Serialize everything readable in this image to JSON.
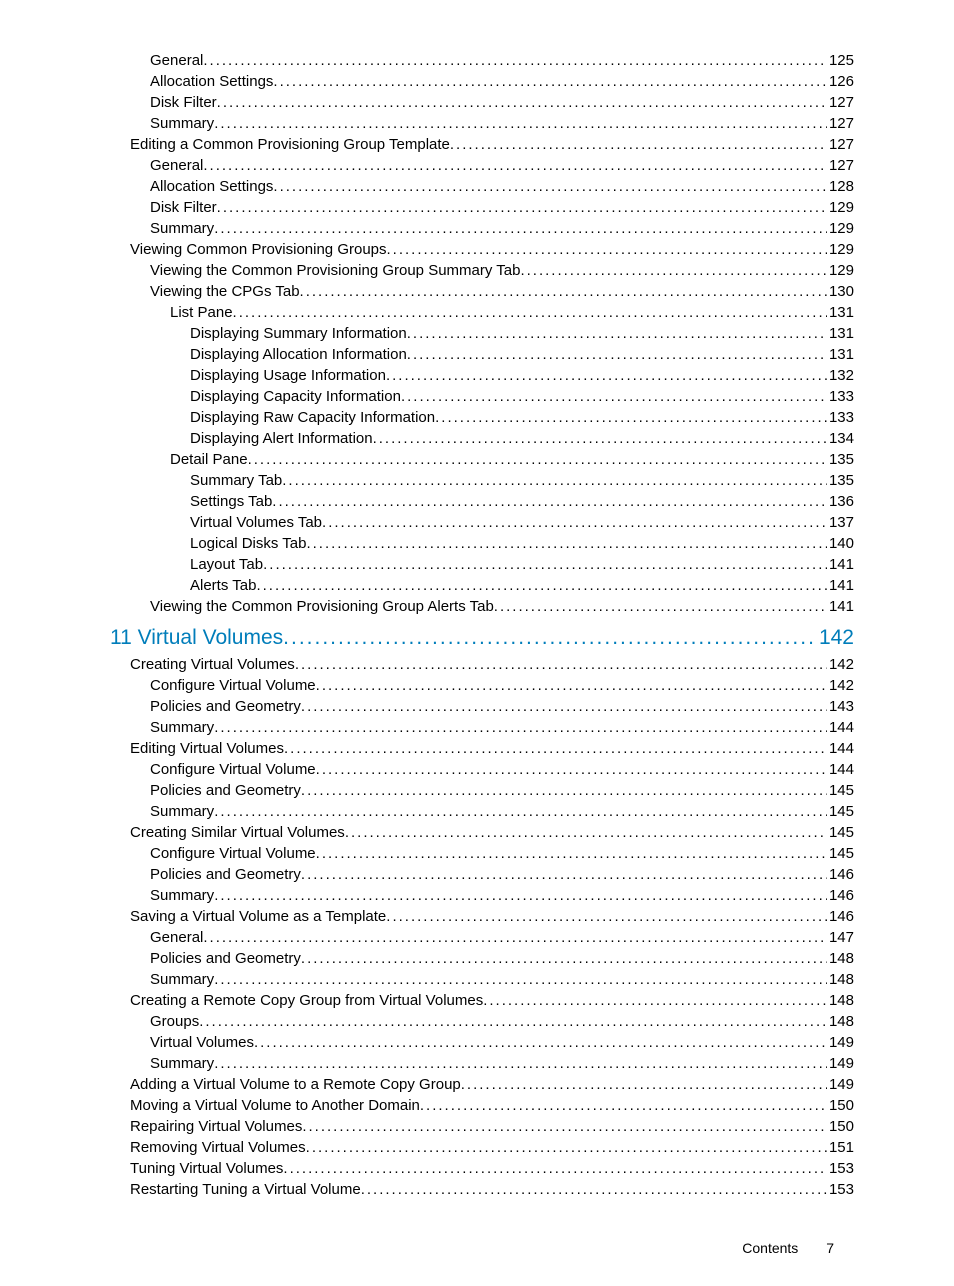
{
  "text_color": "#000000",
  "link_color": "#007dba",
  "background_color": "#ffffff",
  "body_fontsize": 15,
  "chapter_fontsize": 21,
  "font_family": "Trebuchet MS",
  "entries": [
    {
      "label": "General",
      "page": "125",
      "indent": 2
    },
    {
      "label": "Allocation Settings",
      "page": "126",
      "indent": 2
    },
    {
      "label": "Disk Filter",
      "page": "127",
      "indent": 2
    },
    {
      "label": "Summary",
      "page": "127",
      "indent": 2
    },
    {
      "label": "Editing a Common Provisioning Group Template",
      "page": "127",
      "indent": 1
    },
    {
      "label": "General",
      "page": "127",
      "indent": 2
    },
    {
      "label": "Allocation Settings",
      "page": "128",
      "indent": 2
    },
    {
      "label": "Disk Filter",
      "page": "129",
      "indent": 2
    },
    {
      "label": "Summary",
      "page": "129",
      "indent": 2
    },
    {
      "label": "Viewing Common Provisioning Groups",
      "page": "129",
      "indent": 1
    },
    {
      "label": "Viewing the Common Provisioning Group Summary Tab",
      "page": "129",
      "indent": 2
    },
    {
      "label": "Viewing the CPGs Tab",
      "page": "130",
      "indent": 2
    },
    {
      "label": "List Pane",
      "page": "131",
      "indent": 3
    },
    {
      "label": "Displaying Summary Information",
      "page": "131",
      "indent": 4
    },
    {
      "label": "Displaying Allocation Information",
      "page": "131",
      "indent": 4
    },
    {
      "label": "Displaying Usage Information",
      "page": "132",
      "indent": 4
    },
    {
      "label": "Displaying Capacity Information",
      "page": "133",
      "indent": 4
    },
    {
      "label": "Displaying Raw Capacity Information",
      "page": "133",
      "indent": 4
    },
    {
      "label": "Displaying Alert Information",
      "page": "134",
      "indent": 4
    },
    {
      "label": "Detail Pane",
      "page": "135",
      "indent": 3
    },
    {
      "label": "Summary Tab",
      "page": "135",
      "indent": 4
    },
    {
      "label": "Settings Tab",
      "page": "136",
      "indent": 4
    },
    {
      "label": "Virtual Volumes Tab",
      "page": "137",
      "indent": 4
    },
    {
      "label": "Logical Disks Tab",
      "page": "140",
      "indent": 4
    },
    {
      "label": "Layout Tab",
      "page": "141",
      "indent": 4
    },
    {
      "label": "Alerts Tab",
      "page": "141",
      "indent": 4
    },
    {
      "label": "Viewing the Common Provisioning Group Alerts Tab",
      "page": "141",
      "indent": 2
    },
    {
      "label": "11 Virtual Volumes",
      "page": "142",
      "indent": 0,
      "chapter": true
    },
    {
      "label": "Creating Virtual Volumes",
      "page": "142",
      "indent": 1
    },
    {
      "label": "Configure Virtual Volume",
      "page": "142",
      "indent": 2
    },
    {
      "label": "Policies and Geometry",
      "page": "143",
      "indent": 2
    },
    {
      "label": "Summary",
      "page": "144",
      "indent": 2
    },
    {
      "label": "Editing Virtual Volumes",
      "page": "144",
      "indent": 1
    },
    {
      "label": "Configure Virtual Volume",
      "page": "144",
      "indent": 2
    },
    {
      "label": "Policies and Geometry",
      "page": "145",
      "indent": 2
    },
    {
      "label": "Summary",
      "page": "145",
      "indent": 2
    },
    {
      "label": "Creating Similar Virtual Volumes",
      "page": "145",
      "indent": 1
    },
    {
      "label": "Configure Virtual Volume",
      "page": "145",
      "indent": 2
    },
    {
      "label": "Policies and Geometry",
      "page": "146",
      "indent": 2
    },
    {
      "label": "Summary",
      "page": "146",
      "indent": 2
    },
    {
      "label": "Saving a Virtual Volume as a Template",
      "page": "146",
      "indent": 1
    },
    {
      "label": "General",
      "page": "147",
      "indent": 2
    },
    {
      "label": "Policies and Geometry",
      "page": "148",
      "indent": 2
    },
    {
      "label": "Summary",
      "page": "148",
      "indent": 2
    },
    {
      "label": "Creating a Remote Copy Group from Virtual Volumes",
      "page": "148",
      "indent": 1
    },
    {
      "label": "Groups",
      "page": "148",
      "indent": 2
    },
    {
      "label": "Virtual Volumes",
      "page": "149",
      "indent": 2
    },
    {
      "label": "Summary",
      "page": "149",
      "indent": 2
    },
    {
      "label": "Adding a Virtual Volume to a Remote Copy Group",
      "page": "149",
      "indent": 1
    },
    {
      "label": "Moving a Virtual Volume to Another Domain",
      "page": "150",
      "indent": 1
    },
    {
      "label": "Repairing Virtual Volumes",
      "page": "150",
      "indent": 1
    },
    {
      "label": "Removing Virtual Volumes",
      "page": "151",
      "indent": 1
    },
    {
      "label": "Tuning Virtual Volumes",
      "page": "153",
      "indent": 1
    },
    {
      "label": "Restarting Tuning a Virtual Volume",
      "page": "153",
      "indent": 1
    }
  ],
  "footer": {
    "label": "Contents",
    "page": "7"
  }
}
